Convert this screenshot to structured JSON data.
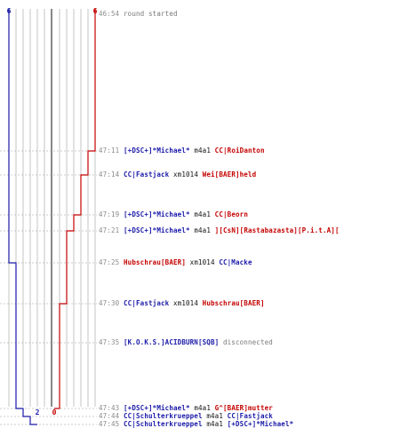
{
  "colors": {
    "blue_team": "#1a1aa8",
    "red_team": "#c40000",
    "grid": "#b8b8b8",
    "center": "#555555",
    "text_gray": "#8a8a8a"
  },
  "graph": {
    "start_score_blue": "6",
    "start_score_red": "6",
    "end_score_blue": "2",
    "end_score_red": "0",
    "blue_scores": [
      6,
      6,
      5,
      4,
      3,
      2
    ],
    "red_scores": [
      6,
      5,
      4,
      3,
      2,
      1,
      0
    ]
  },
  "log": [
    {
      "time": "46:54",
      "parts": [
        {
          "text": "round started",
          "style": "gray"
        }
      ]
    },
    {
      "time": "47:11",
      "parts": [
        {
          "text": "[+DSC+]*Michael*",
          "style": "blue"
        },
        {
          "text": " m4a1 ",
          "style": "blk"
        },
        {
          "text": "CC|RoiDanton",
          "style": "red"
        }
      ]
    },
    {
      "time": "47:14",
      "parts": [
        {
          "text": "CC|Fastjack",
          "style": "blue"
        },
        {
          "text": " xm1014 ",
          "style": "blk"
        },
        {
          "text": "Wei[BAER]held",
          "style": "red"
        }
      ]
    },
    {
      "time": "47:19",
      "parts": [
        {
          "text": "[+DSC+]*Michael*",
          "style": "blue"
        },
        {
          "text": " m4a1 ",
          "style": "blk"
        },
        {
          "text": "CC|Beorn",
          "style": "red"
        }
      ]
    },
    {
      "time": "47:21",
      "parts": [
        {
          "text": "[+DSC+]*Michael*",
          "style": "blue"
        },
        {
          "text": " m4a1 ",
          "style": "blk"
        },
        {
          "text": "][CsN][Rastabazasta][P.i.t.A][",
          "style": "red"
        }
      ]
    },
    {
      "time": "47:25",
      "parts": [
        {
          "text": "Hubschrau[BAER]",
          "style": "red"
        },
        {
          "text": " xm1014 ",
          "style": "blk"
        },
        {
          "text": "CC|Macke",
          "style": "blue"
        }
      ]
    },
    {
      "time": "47:30",
      "parts": [
        {
          "text": "CC|Fastjack",
          "style": "blue"
        },
        {
          "text": " xm1014 ",
          "style": "blk"
        },
        {
          "text": "Hubschrau[BAER]",
          "style": "red"
        }
      ]
    },
    {
      "time": "47:35",
      "parts": [
        {
          "text": "[K.O.K.S.]ACIDBURN[SQB]",
          "style": "blue"
        },
        {
          "text": " disconnected",
          "style": "gray"
        }
      ]
    },
    {
      "time": "47:43",
      "parts": [
        {
          "text": "[+DSC+]*Michael*",
          "style": "blue"
        },
        {
          "text": " m4a1 ",
          "style": "blk"
        },
        {
          "text": "G^[BAER]mutter",
          "style": "red"
        }
      ]
    },
    {
      "time": "47:44",
      "parts": [
        {
          "text": "CC|Schulterkrueppel",
          "style": "blue"
        },
        {
          "text": " m4a1 ",
          "style": "blk"
        },
        {
          "text": "CC|Fastjack",
          "style": "blue"
        }
      ]
    },
    {
      "time": "47:45",
      "parts": [
        {
          "text": "CC|Schulterkrueppel",
          "style": "blue"
        },
        {
          "text": " m4a1 ",
          "style": "blk"
        },
        {
          "text": "[+DSC+]*Michael*",
          "style": "blue"
        }
      ]
    }
  ]
}
